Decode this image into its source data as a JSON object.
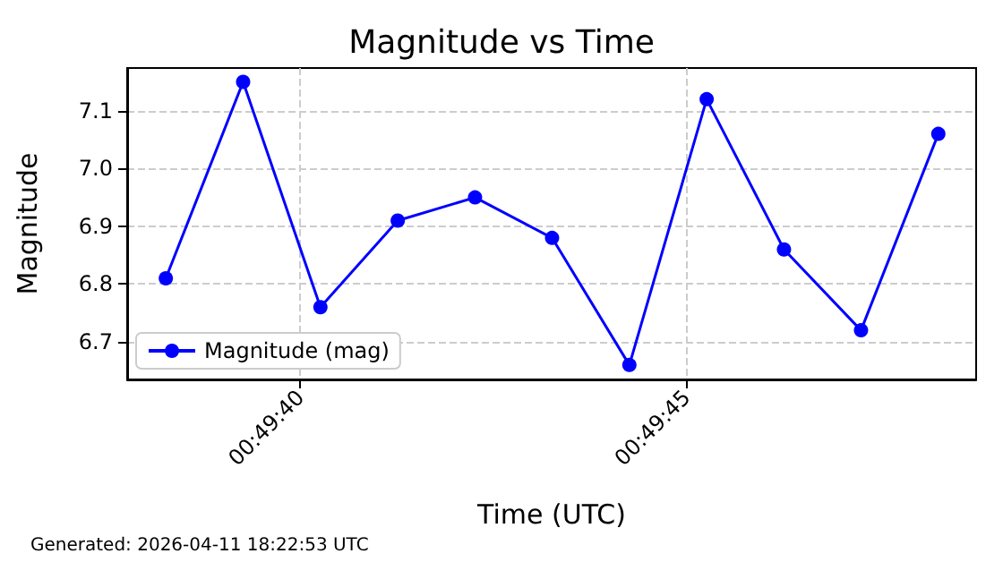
{
  "chart_data": {
    "type": "line",
    "title": "Magnitude vs Time",
    "xlabel": "Time (UTC)",
    "ylabel": "Magnitude",
    "x": [
      0.827294,
      0.827572,
      0.82785,
      0.828128,
      0.828406,
      0.828683,
      0.828961,
      0.829239,
      0.829517,
      0.829794,
      0.830072
    ],
    "series": [
      {
        "name": "Magnitude (mag)",
        "color": "#0000ff",
        "values": [
          6.81,
          7.15,
          6.76,
          6.91,
          6.95,
          6.88,
          6.66,
          7.12,
          6.86,
          6.72,
          7.06
        ]
      }
    ],
    "xlim": [
      0.827155,
      0.830208
    ],
    "xticks": [
      {
        "value": 0.827778,
        "label": "00:49:40"
      },
      {
        "value": 0.829167,
        "label": "00:49:45"
      }
    ],
    "ylim": [
      6.635,
      7.174
    ],
    "yticks": [
      6.7,
      6.8,
      6.9,
      {
        "value": 7,
        "label": "7.0"
      },
      7.1
    ],
    "grid": true,
    "legend": "bottom left",
    "marker": "circle",
    "line_style": "solid",
    "annotations": [
      "Generated: 2026-04-11 18:22:53 UTC"
    ]
  }
}
